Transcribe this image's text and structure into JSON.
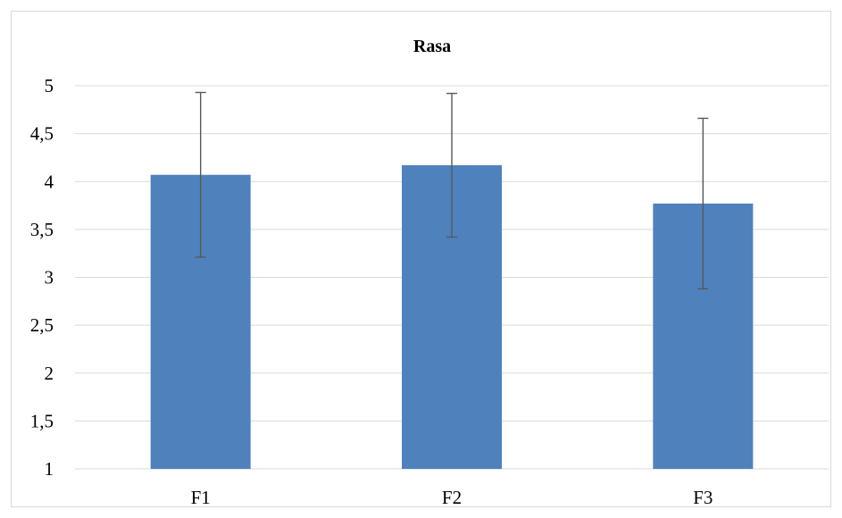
{
  "chart_data": {
    "type": "bar",
    "title": "Rasa",
    "xlabel": "",
    "ylabel": "",
    "categories": [
      "F1",
      "F2",
      "F3"
    ],
    "values": [
      4.07,
      4.17,
      3.77
    ],
    "error": [
      0.86,
      0.75,
      0.89
    ],
    "ylim": [
      1,
      5
    ],
    "yticks": [
      1,
      1.5,
      2,
      2.5,
      3,
      3.5,
      4,
      4.5,
      5
    ],
    "ytick_labels": [
      "1",
      "1,5",
      "2",
      "2,5",
      "3",
      "3,5",
      "4",
      "4,5",
      "5"
    ],
    "grid": true,
    "legend": "none",
    "bar_color": "#4f81bd",
    "error_color": "#595959"
  }
}
